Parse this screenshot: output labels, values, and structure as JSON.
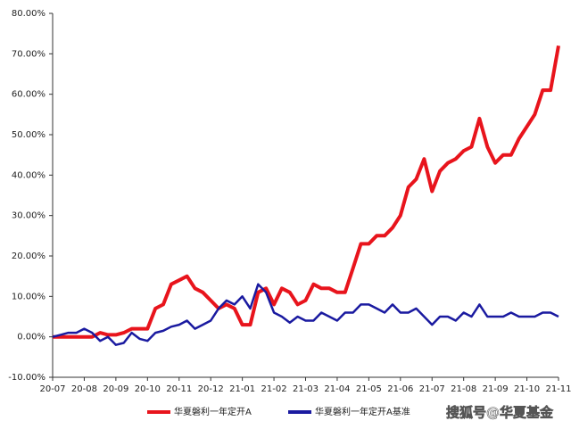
{
  "chart_data": {
    "type": "line",
    "x": [
      0,
      0.25,
      0.5,
      0.75,
      1,
      1.25,
      1.5,
      1.75,
      2,
      2.25,
      2.5,
      2.75,
      3,
      3.25,
      3.5,
      3.75,
      4,
      4.25,
      4.5,
      4.75,
      5,
      5.25,
      5.5,
      5.75,
      6,
      6.25,
      6.5,
      6.75,
      7,
      7.25,
      7.5,
      7.75,
      8,
      8.25,
      8.5,
      8.75,
      9,
      9.25,
      9.5,
      9.75,
      10,
      10.25,
      10.5,
      10.75,
      11,
      11.25,
      11.5,
      11.75,
      12,
      12.25,
      12.5,
      12.75,
      13,
      13.25,
      13.5,
      13.75,
      14,
      14.25,
      14.5,
      14.75,
      15,
      15.25,
      15.5,
      15.75,
      16
    ],
    "series": [
      {
        "name": "华夏磐利一年定开A",
        "color": "#e8141c",
        "values": [
          0,
          0,
          0,
          0,
          0,
          0,
          1,
          0.5,
          0.5,
          1,
          2,
          2,
          2,
          7,
          8,
          13,
          14,
          15,
          12,
          11,
          9,
          7,
          8,
          7,
          3,
          3,
          11,
          12,
          8,
          12,
          11,
          8,
          9,
          13,
          12,
          12,
          11,
          11,
          17,
          23,
          23,
          25,
          25,
          27,
          30,
          37,
          39,
          44,
          36,
          41,
          43,
          44,
          46,
          47,
          54,
          47,
          43,
          45,
          45,
          49,
          52,
          55,
          61,
          61,
          72
        ]
      },
      {
        "name": "华夏磐利一年定开A基准",
        "color": "#1a1aa0",
        "values": [
          0,
          0.5,
          1,
          1,
          2,
          1,
          -1,
          0,
          -2,
          -1.5,
          1,
          -0.5,
          -1,
          1,
          1.5,
          2.5,
          3,
          4,
          2,
          3,
          4,
          7,
          9,
          8,
          10,
          7,
          13,
          11,
          6,
          5,
          3.5,
          5,
          4,
          4,
          6,
          5,
          4,
          6,
          6,
          8,
          8,
          7,
          6,
          8,
          6,
          6,
          7,
          5,
          3,
          5,
          5,
          4,
          6,
          5,
          8,
          5,
          5,
          5,
          6,
          5,
          5,
          5,
          6,
          6,
          5
        ]
      }
    ],
    "xlim": [
      0,
      16
    ],
    "xticks": [
      {
        "value": 0,
        "label": "20-07"
      },
      {
        "value": 1,
        "label": "20-08"
      },
      {
        "value": 2,
        "label": "20-09"
      },
      {
        "value": 3,
        "label": "20-10"
      },
      {
        "value": 4,
        "label": "20-11"
      },
      {
        "value": 5,
        "label": "20-12"
      },
      {
        "value": 6,
        "label": "21-01"
      },
      {
        "value": 7,
        "label": "21-02"
      },
      {
        "value": 8,
        "label": "21-03"
      },
      {
        "value": 9,
        "label": "21-04"
      },
      {
        "value": 10,
        "label": "21-05"
      },
      {
        "value": 11,
        "label": "21-06"
      },
      {
        "value": 12,
        "label": "21-07"
      },
      {
        "value": 13,
        "label": "21-08"
      },
      {
        "value": 14,
        "label": "21-09"
      },
      {
        "value": 15,
        "label": "21-10"
      },
      {
        "value": 16,
        "label": "21-11"
      }
    ],
    "ylim": [
      -10,
      80
    ],
    "yticks": [
      {
        "value": -10,
        "label": "-10.00%"
      },
      {
        "value": 0,
        "label": "0.00%"
      },
      {
        "value": 10,
        "label": "10.00%"
      },
      {
        "value": 20,
        "label": "20.00%"
      },
      {
        "value": 30,
        "label": "30.00%"
      },
      {
        "value": 40,
        "label": "40.00%"
      },
      {
        "value": 50,
        "label": "50.00%"
      },
      {
        "value": 60,
        "label": "60.00%"
      },
      {
        "value": 70,
        "label": "70.00%"
      },
      {
        "value": 80,
        "label": "80.00%"
      }
    ],
    "grid": false,
    "watermark": "搜狐号@华夏基金"
  }
}
